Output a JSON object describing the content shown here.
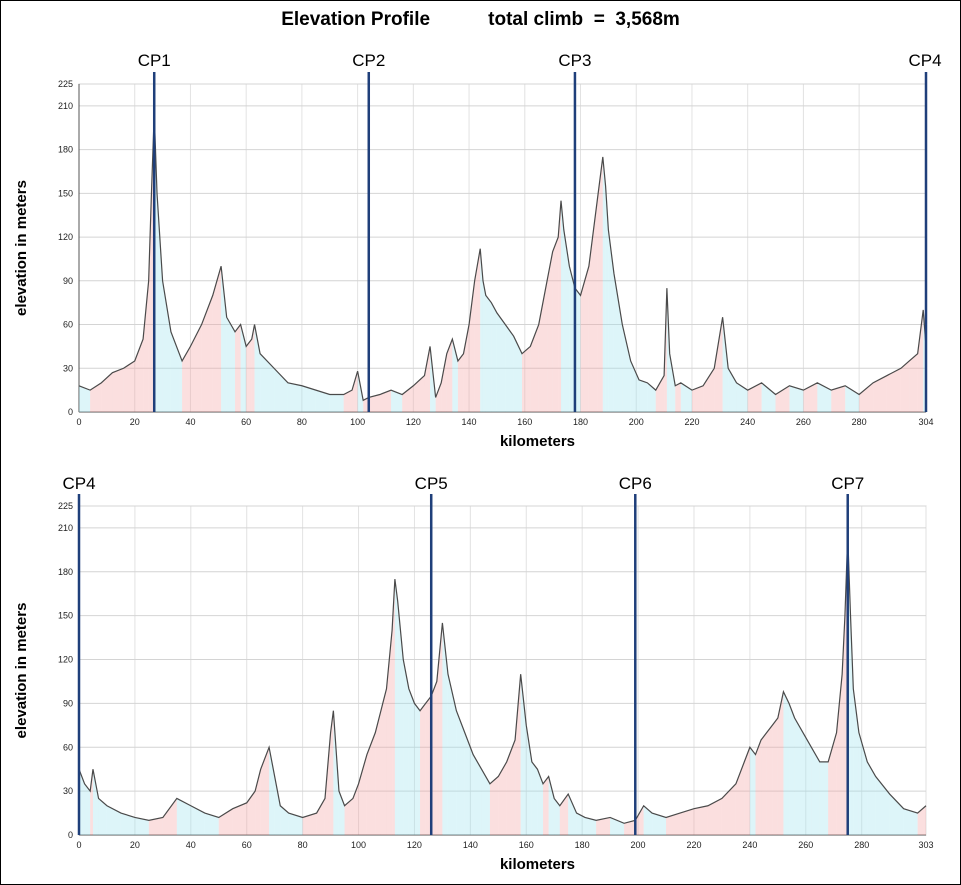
{
  "title": {
    "main": "Elevation Profile",
    "climb": "total climb  =  3,568m"
  },
  "chart_data": [
    {
      "type": "area",
      "xlabel": "kilometers",
      "ylabel": "elevation in meters",
      "xlim": [
        0,
        304
      ],
      "ylim": [
        0,
        225
      ],
      "xticks": [
        0,
        20,
        40,
        60,
        80,
        100,
        120,
        140,
        160,
        180,
        200,
        220,
        240,
        260,
        280,
        304
      ],
      "yticks": [
        0,
        30,
        60,
        90,
        120,
        150,
        180,
        210,
        225
      ],
      "grid": true,
      "checkpoints": [
        {
          "label": "CP1",
          "x": 27
        },
        {
          "label": "CP2",
          "x": 104
        },
        {
          "label": "CP3",
          "x": 178
        },
        {
          "label": "CP4",
          "x": 304
        }
      ],
      "x": [
        0,
        4,
        8,
        12,
        16,
        20,
        23,
        25,
        26,
        27,
        28,
        30,
        33,
        36,
        37,
        40,
        44,
        48,
        51,
        53,
        56,
        58,
        60,
        62,
        63,
        65,
        70,
        75,
        80,
        85,
        90,
        95,
        98,
        100,
        102,
        104,
        108,
        112,
        116,
        120,
        124,
        126,
        128,
        130,
        132,
        134,
        136,
        138,
        140,
        142,
        144,
        145,
        146,
        148,
        150,
        153,
        156,
        159,
        162,
        165,
        168,
        170,
        172,
        173,
        174,
        176,
        178,
        180,
        183,
        186,
        188,
        189,
        190,
        192,
        195,
        198,
        201,
        204,
        207,
        210,
        211,
        212,
        214,
        216,
        220,
        224,
        228,
        231,
        233,
        236,
        240,
        245,
        250,
        255,
        260,
        265,
        270,
        275,
        280,
        285,
        290,
        295,
        298,
        301,
        303,
        304
      ],
      "values": [
        18,
        15,
        20,
        27,
        30,
        35,
        50,
        90,
        150,
        205,
        150,
        90,
        55,
        40,
        35,
        45,
        60,
        80,
        100,
        65,
        55,
        60,
        45,
        50,
        60,
        40,
        30,
        20,
        18,
        15,
        12,
        12,
        15,
        28,
        8,
        10,
        12,
        15,
        12,
        18,
        25,
        45,
        10,
        20,
        40,
        50,
        35,
        40,
        60,
        90,
        112,
        90,
        80,
        75,
        68,
        60,
        52,
        40,
        45,
        60,
        90,
        110,
        120,
        145,
        125,
        100,
        85,
        80,
        100,
        145,
        175,
        155,
        125,
        95,
        60,
        35,
        22,
        20,
        15,
        25,
        85,
        40,
        18,
        20,
        15,
        18,
        30,
        65,
        30,
        20,
        15,
        20,
        12,
        18,
        15,
        20,
        15,
        18,
        12,
        20,
        25,
        30,
        35,
        40,
        70,
        45
      ]
    },
    {
      "type": "area",
      "xlabel": "kilometers",
      "ylabel": "elevation in meters",
      "xlim": [
        0,
        303
      ],
      "ylim": [
        0,
        225
      ],
      "xticks": [
        0,
        20,
        40,
        60,
        80,
        100,
        120,
        140,
        160,
        180,
        200,
        220,
        240,
        260,
        280,
        303
      ],
      "yticks": [
        0,
        30,
        60,
        90,
        120,
        150,
        180,
        210,
        225
      ],
      "grid": true,
      "checkpoints": [
        {
          "label": "CP4",
          "x": 0
        },
        {
          "label": "CP5",
          "x": 126
        },
        {
          "label": "CP6",
          "x": 199
        },
        {
          "label": "CP7",
          "x": 275
        }
      ],
      "x": [
        0,
        2,
        4,
        5,
        7,
        10,
        15,
        20,
        25,
        30,
        35,
        40,
        45,
        50,
        55,
        60,
        63,
        65,
        68,
        70,
        72,
        75,
        80,
        85,
        88,
        90,
        91,
        93,
        95,
        98,
        100,
        103,
        106,
        108,
        110,
        112,
        113,
        114,
        116,
        118,
        120,
        122,
        124,
        126,
        128,
        129,
        130,
        132,
        135,
        138,
        141,
        144,
        147,
        150,
        153,
        156,
        158,
        160,
        162,
        164,
        166,
        168,
        170,
        172,
        175,
        178,
        181,
        185,
        190,
        195,
        199,
        202,
        205,
        210,
        215,
        220,
        225,
        230,
        235,
        238,
        240,
        242,
        244,
        246,
        248,
        250,
        252,
        254,
        256,
        259,
        262,
        265,
        268,
        271,
        273,
        274,
        275,
        276,
        277,
        279,
        282,
        285,
        290,
        295,
        300,
        303
      ],
      "values": [
        45,
        35,
        30,
        45,
        25,
        20,
        15,
        12,
        10,
        12,
        25,
        20,
        15,
        12,
        18,
        22,
        30,
        45,
        60,
        40,
        20,
        15,
        12,
        15,
        25,
        70,
        85,
        30,
        20,
        25,
        35,
        55,
        70,
        85,
        100,
        140,
        175,
        160,
        120,
        100,
        90,
        85,
        90,
        95,
        105,
        125,
        145,
        110,
        85,
        70,
        55,
        45,
        35,
        40,
        50,
        65,
        110,
        75,
        50,
        45,
        35,
        40,
        25,
        20,
        28,
        15,
        12,
        10,
        12,
        8,
        10,
        20,
        15,
        12,
        15,
        18,
        20,
        25,
        35,
        50,
        60,
        55,
        65,
        70,
        75,
        80,
        98,
        90,
        80,
        70,
        60,
        50,
        50,
        70,
        110,
        150,
        205,
        150,
        100,
        70,
        50,
        40,
        28,
        18,
        15,
        20
      ]
    }
  ]
}
